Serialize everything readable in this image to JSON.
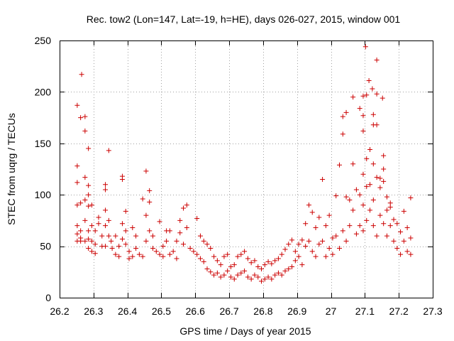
{
  "chart_data": {
    "type": "scatter",
    "title": "Rec. tow2 (Lon=147, Lat=-19, h=HE), days 026-027, 2015, window 001",
    "xlabel": "GPS time / Days of year 2015",
    "ylabel": "STEC from uqrg / TECUs",
    "xlim": [
      26.2,
      27.3
    ],
    "ylim": [
      0,
      250
    ],
    "x_ticks": [
      26.2,
      26.3,
      26.4,
      26.5,
      26.6,
      26.7,
      26.8,
      26.9,
      27.0,
      27.1,
      27.2,
      27.3
    ],
    "x_tick_labels": [
      "26.2",
      "26.3",
      "26.4",
      "26.5",
      "26.6",
      "26.7",
      "26.8",
      "26.9",
      "27",
      "27.1",
      "27.2",
      "27.3"
    ],
    "y_ticks": [
      0,
      50,
      100,
      150,
      200,
      250
    ],
    "y_tick_labels": [
      "0",
      "50",
      "100",
      "150",
      "200",
      "250"
    ],
    "grid": true,
    "marker": "+",
    "marker_color": "#cc0000",
    "series": [
      {
        "name": "STEC",
        "points": [
          [
            26.252,
            187
          ],
          [
            26.265,
            217
          ],
          [
            26.262,
            175
          ],
          [
            26.275,
            176
          ],
          [
            26.275,
            162
          ],
          [
            26.252,
            128
          ],
          [
            26.252,
            112
          ],
          [
            26.285,
            145
          ],
          [
            26.275,
            117
          ],
          [
            26.285,
            109
          ],
          [
            26.252,
            90
          ],
          [
            26.262,
            92
          ],
          [
            26.275,
            95
          ],
          [
            26.285,
            89
          ],
          [
            26.295,
            90
          ],
          [
            26.285,
            100
          ],
          [
            26.252,
            70
          ],
          [
            26.252,
            62
          ],
          [
            26.262,
            58
          ],
          [
            26.262,
            65
          ],
          [
            26.275,
            75
          ],
          [
            26.285,
            65
          ],
          [
            26.295,
            70
          ],
          [
            26.295,
            55
          ],
          [
            26.252,
            55
          ],
          [
            26.262,
            55
          ],
          [
            26.275,
            55
          ],
          [
            26.285,
            48
          ],
          [
            26.285,
            57
          ],
          [
            26.295,
            45
          ],
          [
            26.305,
            43
          ],
          [
            26.305,
            52
          ],
          [
            26.305,
            65
          ],
          [
            26.315,
            72
          ],
          [
            26.315,
            78
          ],
          [
            26.325,
            60
          ],
          [
            26.325,
            50
          ],
          [
            26.335,
            110
          ],
          [
            26.335,
            105
          ],
          [
            26.335,
            85
          ],
          [
            26.335,
            70
          ],
          [
            26.335,
            50
          ],
          [
            26.345,
            143
          ],
          [
            26.345,
            75
          ],
          [
            26.345,
            60
          ],
          [
            26.352,
            55
          ],
          [
            26.355,
            48
          ],
          [
            26.365,
            60
          ],
          [
            26.365,
            42
          ],
          [
            26.375,
            50
          ],
          [
            26.375,
            40
          ],
          [
            26.385,
            118
          ],
          [
            26.385,
            115
          ],
          [
            26.385,
            72
          ],
          [
            26.385,
            57
          ],
          [
            26.395,
            84
          ],
          [
            26.395,
            65
          ],
          [
            26.395,
            52
          ],
          [
            26.405,
            45
          ],
          [
            26.405,
            38
          ],
          [
            26.415,
            68
          ],
          [
            26.415,
            40
          ],
          [
            26.425,
            60
          ],
          [
            26.425,
            48
          ],
          [
            26.435,
            42
          ],
          [
            26.445,
            40
          ],
          [
            26.445,
            96
          ],
          [
            26.455,
            123
          ],
          [
            26.455,
            80
          ],
          [
            26.455,
            55
          ],
          [
            26.465,
            104
          ],
          [
            26.465,
            93
          ],
          [
            26.465,
            65
          ],
          [
            26.475,
            60
          ],
          [
            26.475,
            48
          ],
          [
            26.485,
            45
          ],
          [
            26.495,
            42
          ],
          [
            26.495,
            74
          ],
          [
            26.505,
            50
          ],
          [
            26.505,
            40
          ],
          [
            26.515,
            65
          ],
          [
            26.515,
            55
          ],
          [
            26.525,
            65
          ],
          [
            26.525,
            42
          ],
          [
            26.535,
            45
          ],
          [
            26.545,
            55
          ],
          [
            26.545,
            38
          ],
          [
            26.555,
            75
          ],
          [
            26.555,
            63
          ],
          [
            26.565,
            87
          ],
          [
            26.565,
            52
          ],
          [
            26.575,
            90
          ],
          [
            26.575,
            68
          ],
          [
            26.585,
            48
          ],
          [
            26.595,
            45
          ],
          [
            26.605,
            42
          ],
          [
            26.605,
            77
          ],
          [
            26.615,
            60
          ],
          [
            26.615,
            38
          ],
          [
            26.625,
            55
          ],
          [
            26.625,
            35
          ],
          [
            26.635,
            52
          ],
          [
            26.635,
            28
          ],
          [
            26.645,
            48
          ],
          [
            26.645,
            25
          ],
          [
            26.655,
            40
          ],
          [
            26.655,
            22
          ],
          [
            26.665,
            36
          ],
          [
            26.665,
            24
          ],
          [
            26.675,
            32
          ],
          [
            26.675,
            20
          ],
          [
            26.685,
            40
          ],
          [
            26.685,
            22
          ],
          [
            26.695,
            42
          ],
          [
            26.695,
            26
          ],
          [
            26.705,
            30
          ],
          [
            26.705,
            20
          ],
          [
            26.715,
            32
          ],
          [
            26.715,
            18
          ],
          [
            26.725,
            40
          ],
          [
            26.725,
            22
          ],
          [
            26.735,
            42
          ],
          [
            26.735,
            24
          ],
          [
            26.745,
            45
          ],
          [
            26.745,
            26
          ],
          [
            26.755,
            38
          ],
          [
            26.755,
            20
          ],
          [
            26.765,
            34
          ],
          [
            26.765,
            18
          ],
          [
            26.775,
            36
          ],
          [
            26.775,
            22
          ],
          [
            26.785,
            30
          ],
          [
            26.785,
            20
          ],
          [
            26.795,
            28
          ],
          [
            26.795,
            16
          ],
          [
            26.805,
            32
          ],
          [
            26.805,
            18
          ],
          [
            26.815,
            35
          ],
          [
            26.815,
            20
          ],
          [
            26.825,
            33
          ],
          [
            26.825,
            18
          ],
          [
            26.835,
            36
          ],
          [
            26.835,
            22
          ],
          [
            26.845,
            38
          ],
          [
            26.845,
            24
          ],
          [
            26.855,
            42
          ],
          [
            26.855,
            22
          ],
          [
            26.865,
            47
          ],
          [
            26.865,
            26
          ],
          [
            26.875,
            52
          ],
          [
            26.875,
            28
          ],
          [
            26.885,
            56
          ],
          [
            26.885,
            30
          ],
          [
            26.895,
            45
          ],
          [
            26.895,
            36
          ],
          [
            26.905,
            52
          ],
          [
            26.905,
            40
          ],
          [
            26.915,
            56
          ],
          [
            26.915,
            32
          ],
          [
            26.925,
            72
          ],
          [
            26.925,
            50
          ],
          [
            26.935,
            90
          ],
          [
            26.935,
            55
          ],
          [
            26.945,
            83
          ],
          [
            26.945,
            45
          ],
          [
            26.955,
            68
          ],
          [
            26.955,
            40
          ],
          [
            26.965,
            78
          ],
          [
            26.965,
            52
          ],
          [
            26.975,
            115
          ],
          [
            26.975,
            55
          ],
          [
            26.985,
            70
          ],
          [
            26.985,
            40
          ],
          [
            26.995,
            80
          ],
          [
            26.995,
            48
          ],
          [
            27.005,
            58
          ],
          [
            27.005,
            42
          ],
          [
            27.015,
            99
          ],
          [
            27.015,
            60
          ],
          [
            27.025,
            129
          ],
          [
            27.025,
            48
          ],
          [
            27.035,
            176
          ],
          [
            27.035,
            159
          ],
          [
            27.035,
            65
          ],
          [
            27.045,
            180
          ],
          [
            27.045,
            98
          ],
          [
            27.045,
            55
          ],
          [
            27.055,
            95
          ],
          [
            27.055,
            70
          ],
          [
            27.065,
            195
          ],
          [
            27.065,
            130
          ],
          [
            27.065,
            85
          ],
          [
            27.075,
            105
          ],
          [
            27.075,
            62
          ],
          [
            27.085,
            184
          ],
          [
            27.085,
            100
          ],
          [
            27.085,
            70
          ],
          [
            27.095,
            196
          ],
          [
            27.095,
            177
          ],
          [
            27.095,
            162
          ],
          [
            27.095,
            120
          ],
          [
            27.095,
            90
          ],
          [
            27.095,
            65
          ],
          [
            27.102,
            244
          ],
          [
            27.105,
            197
          ],
          [
            27.105,
            135
          ],
          [
            27.105,
            108
          ],
          [
            27.105,
            75
          ],
          [
            27.112,
            211
          ],
          [
            27.115,
            144
          ],
          [
            27.115,
            110
          ],
          [
            27.115,
            85
          ],
          [
            27.122,
            203
          ],
          [
            27.125,
            178
          ],
          [
            27.125,
            168
          ],
          [
            27.125,
            130
          ],
          [
            27.125,
            95
          ],
          [
            27.125,
            70
          ],
          [
            27.135,
            231
          ],
          [
            27.135,
            198
          ],
          [
            27.135,
            168
          ],
          [
            27.135,
            117
          ],
          [
            27.135,
            60
          ],
          [
            27.145,
            116
          ],
          [
            27.145,
            107
          ],
          [
            27.145,
            80
          ],
          [
            27.152,
            194
          ],
          [
            27.155,
            138
          ],
          [
            27.155,
            125
          ],
          [
            27.155,
            113
          ],
          [
            27.155,
            72
          ],
          [
            27.165,
            98
          ],
          [
            27.165,
            85
          ],
          [
            27.165,
            60
          ],
          [
            27.175,
            92
          ],
          [
            27.175,
            88
          ],
          [
            27.175,
            70
          ],
          [
            27.185,
            76
          ],
          [
            27.185,
            55
          ],
          [
            27.195,
            72
          ],
          [
            27.195,
            48
          ],
          [
            27.205,
            64
          ],
          [
            27.205,
            42
          ],
          [
            27.215,
            84
          ],
          [
            27.215,
            55
          ],
          [
            27.225,
            68
          ],
          [
            27.225,
            45
          ],
          [
            27.235,
            97
          ],
          [
            27.235,
            58
          ],
          [
            27.235,
            42
          ]
        ]
      }
    ]
  }
}
